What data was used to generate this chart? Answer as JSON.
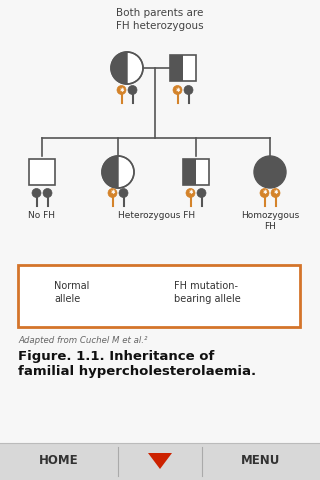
{
  "bg_color": "#f7f7f7",
  "white": "#ffffff",
  "dark_gray": "#555555",
  "orange": "#d4832a",
  "border_orange": "#d4742a",
  "title_text": "Both parents are\nFH heterozygous",
  "label_no_fh": "No FH",
  "label_het": "Heterozygous FH",
  "label_hom": "Homozygous\nFH",
  "legend_normal": "Normal\nallele",
  "legend_fh": "FH mutation-\nbearing allele",
  "adapted_text": "Adapted from Cuchel M et al.²",
  "figure_line1": "Figure. 1.1. Inheritance of",
  "figure_line2": "familial hypercholesterolaemia.",
  "home_text": "HOME",
  "menu_text": "MENU",
  "footer_bg": "#d8d8d8",
  "line_color": "#888888"
}
